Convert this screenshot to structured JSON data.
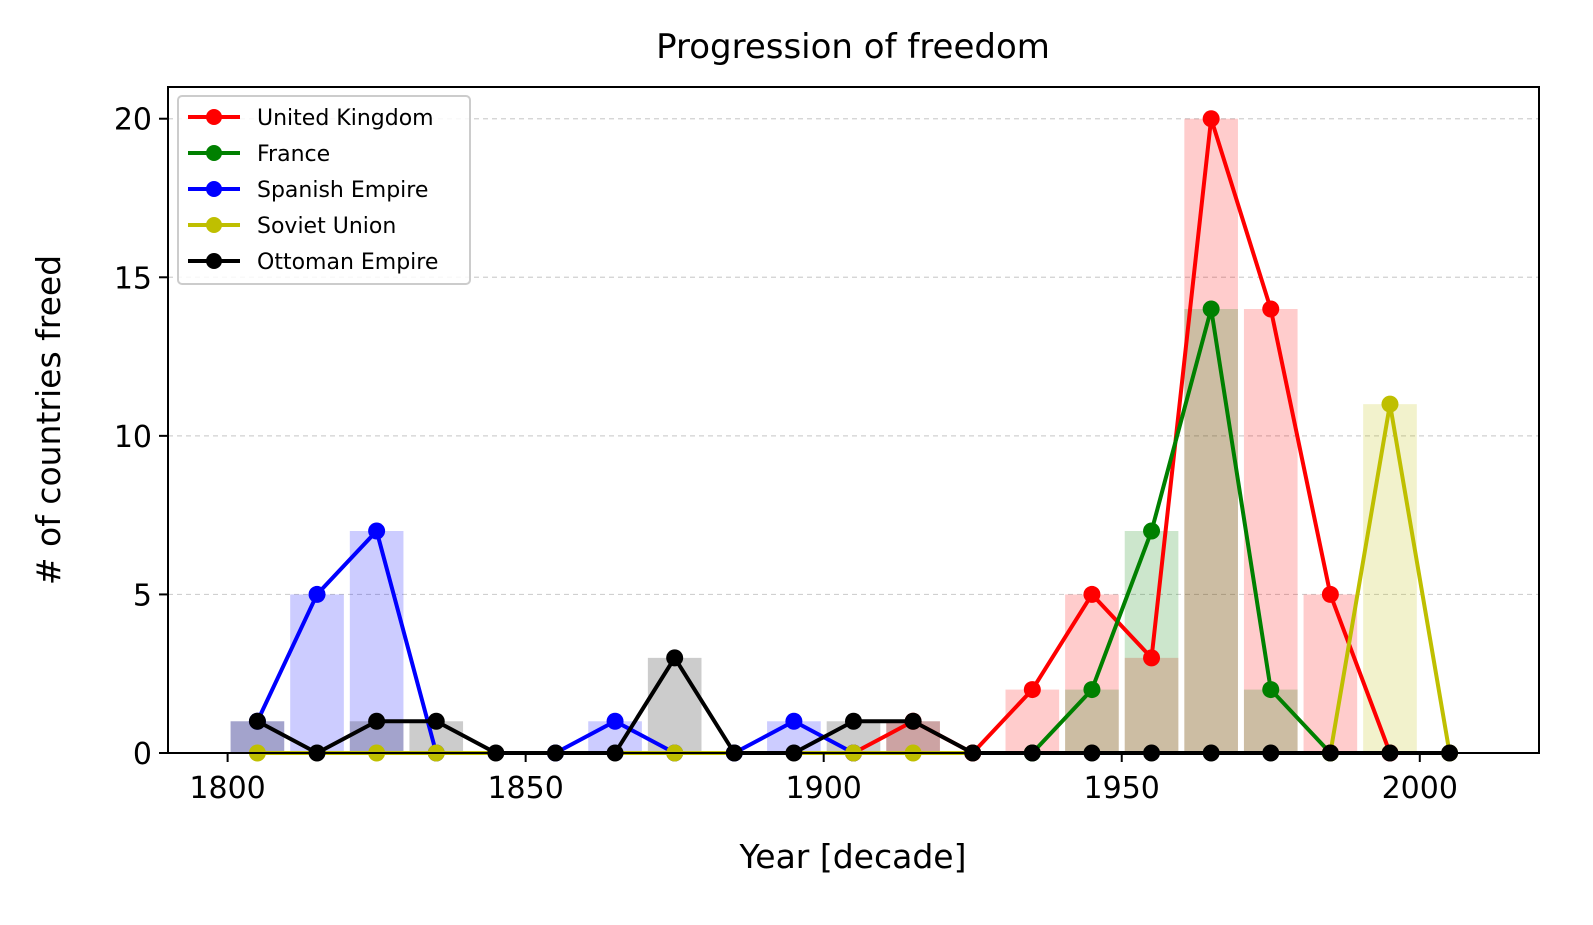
{
  "chart_data": {
    "type": "line",
    "title": "Progression of freedom",
    "xlabel": "Year [decade]",
    "ylabel": "# of countries freed",
    "xlim": [
      1790,
      2020
    ],
    "ylim": [
      0,
      21
    ],
    "x_ticks": [
      "1800",
      "1850",
      "1900",
      "1950",
      "2000"
    ],
    "y_ticks": [
      "0",
      "5",
      "10",
      "15",
      "20"
    ],
    "grid": "horizontal dashed",
    "legend_position": "top-left",
    "bar_width": 9,
    "bar_opacity": 0.2,
    "series": [
      {
        "name": "United Kingdom",
        "color": "#ff0000",
        "x": [
          1905,
          1915,
          1925,
          1935,
          1945,
          1955,
          1965,
          1975,
          1985,
          1995
        ],
        "values": [
          0,
          1,
          0,
          2,
          5,
          3,
          20,
          14,
          5,
          0
        ]
      },
      {
        "name": "France",
        "color": "#008000",
        "x": [
          1935,
          1945,
          1955,
          1965,
          1975,
          1985
        ],
        "values": [
          0,
          2,
          7,
          14,
          2,
          0
        ]
      },
      {
        "name": "Spanish Empire",
        "color": "#0000ff",
        "x": [
          1805,
          1815,
          1825,
          1835,
          1855,
          1865,
          1875,
          1885,
          1895,
          1905
        ],
        "values": [
          1,
          5,
          7,
          0,
          0,
          1,
          0,
          0,
          1,
          0
        ]
      },
      {
        "name": "Soviet Union",
        "color": "#bfbf00",
        "x": [
          1805,
          1825,
          1835,
          1875,
          1905,
          1915,
          1985,
          1995,
          2005
        ],
        "values": [
          0,
          0,
          0,
          0,
          0,
          0,
          0,
          11,
          0
        ]
      },
      {
        "name": "Ottoman Empire",
        "color": "#000000",
        "x": [
          1805,
          1815,
          1825,
          1835,
          1845,
          1855,
          1865,
          1875,
          1885,
          1895,
          1905,
          1915,
          1925,
          1935,
          1945,
          1955,
          1965,
          1975,
          1985,
          1995,
          2005
        ],
        "values": [
          1,
          0,
          1,
          1,
          0,
          0,
          0,
          3,
          0,
          0,
          1,
          1,
          0,
          0,
          0,
          0,
          0,
          0,
          0,
          0,
          0
        ]
      }
    ]
  }
}
